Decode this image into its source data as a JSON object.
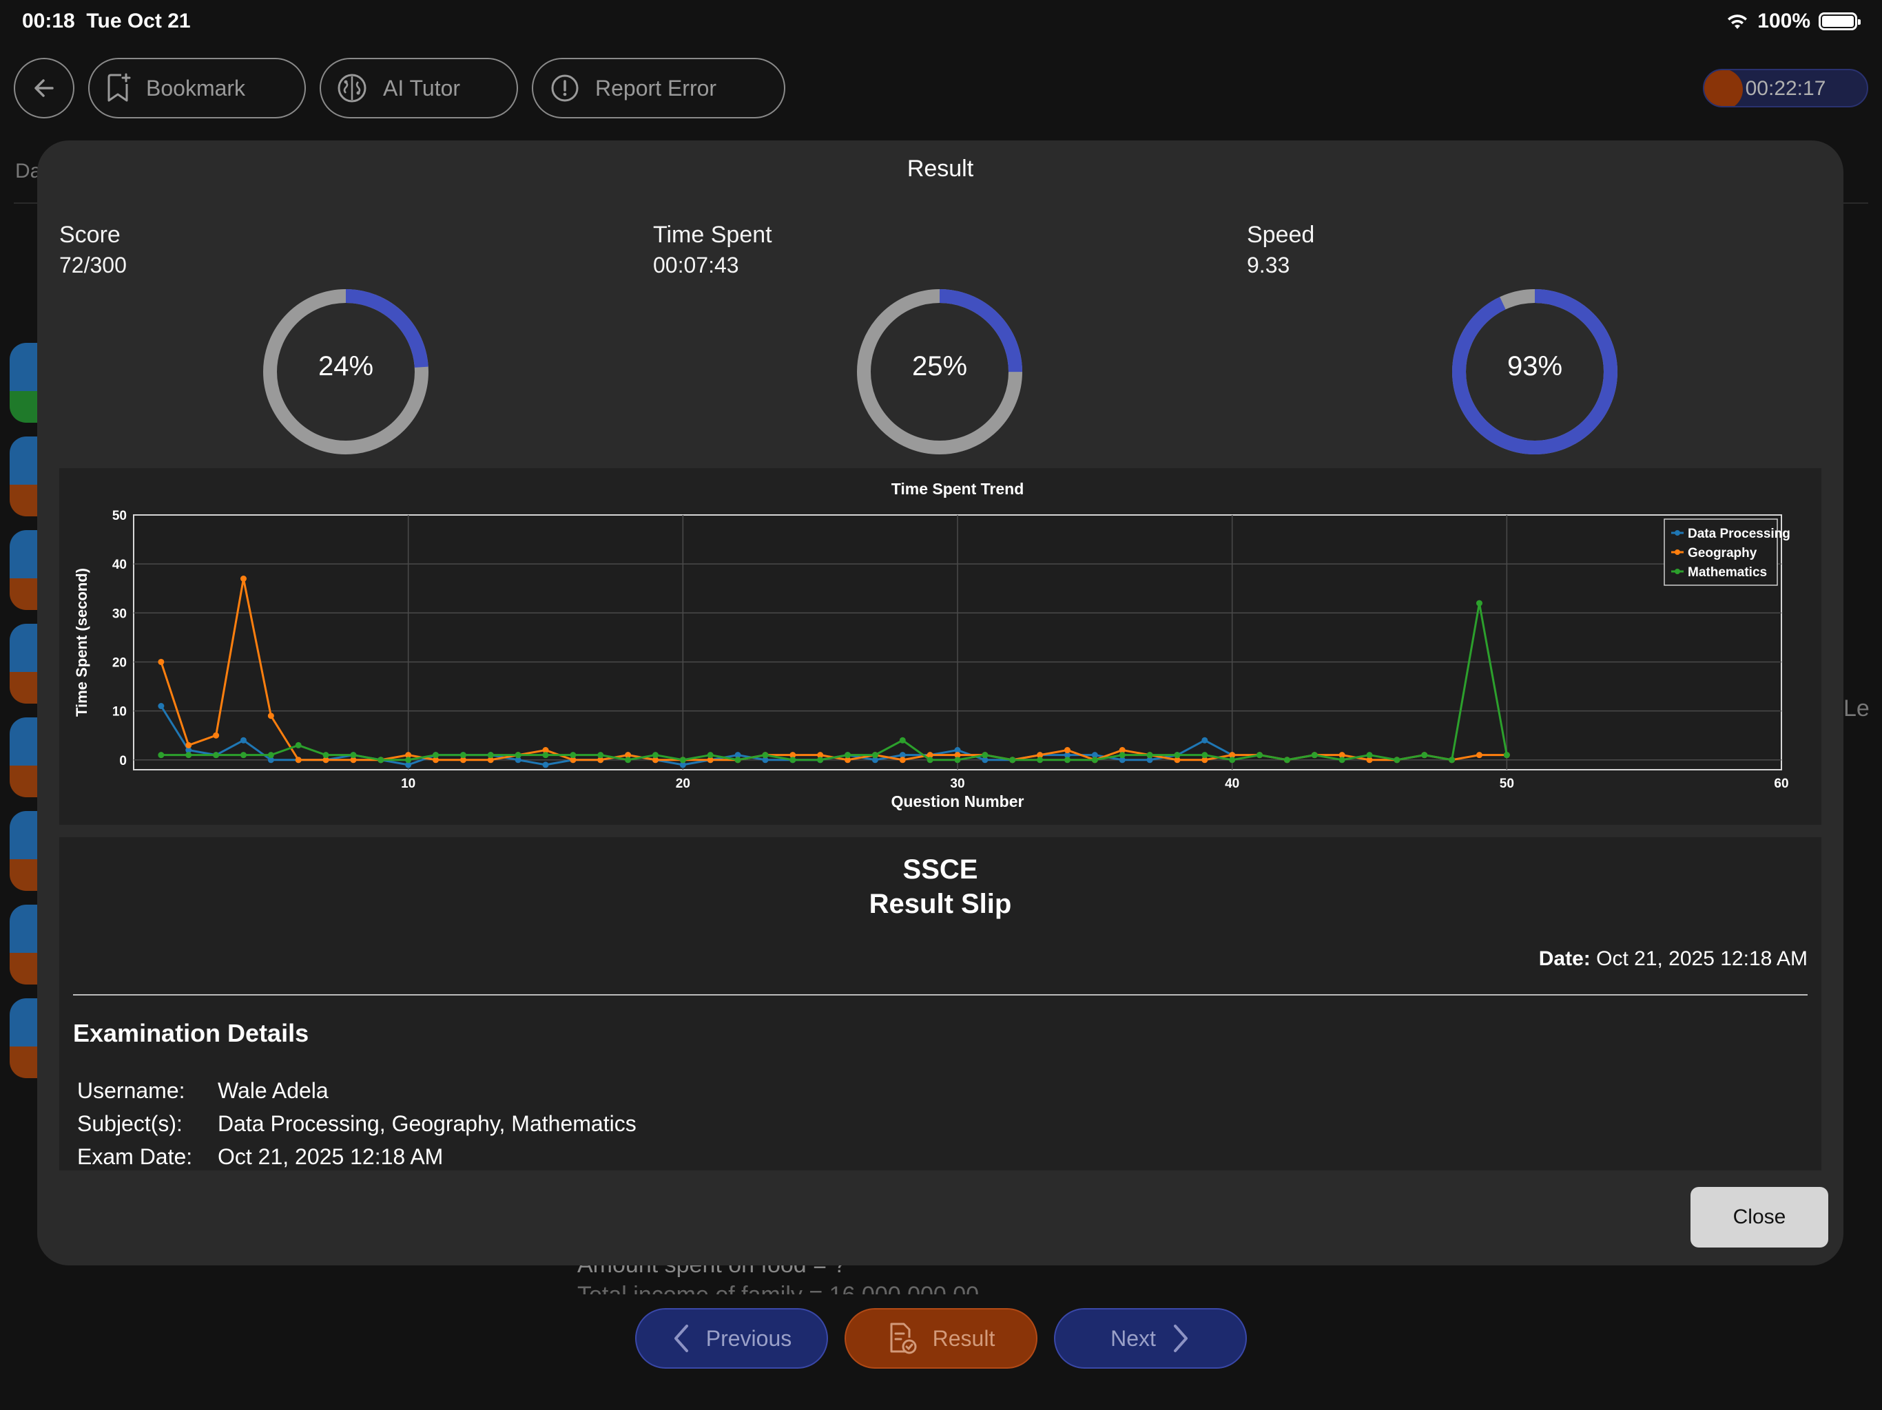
{
  "status_bar": {
    "time": "00:18",
    "date": "Tue Oct 21",
    "battery": "100%"
  },
  "toolbar": {
    "bookmark_label": "Bookmark",
    "ai_tutor_label": "AI Tutor",
    "report_label": "Report Error",
    "timer": "00:22:17",
    "timer_progress": 0.15
  },
  "background": {
    "tab_fragment": "Da",
    "right_fragment": "Le",
    "question_line": "Amount spent on food = ?",
    "question_line2": "Total income of family = 16,000,000.00"
  },
  "modal": {
    "title": "Result",
    "score": {
      "label": "Score",
      "value": "72/300",
      "percent": 24,
      "percent_label": "24%"
    },
    "time_spent": {
      "label": "Time Spent",
      "value": "00:07:43",
      "percent": 25,
      "percent_label": "25%"
    },
    "speed": {
      "label": "Speed",
      "value": "9.33",
      "percent": 93,
      "percent_label": "93%"
    },
    "close_label": "Close"
  },
  "colors": {
    "donut_fill": "#4150c0",
    "donut_track": "#9a9a9a",
    "series_blue": "#1f77b4",
    "series_orange": "#ff7f0e",
    "series_green": "#2ca02c"
  },
  "chart_data": {
    "type": "line",
    "title": "Time Spent Trend",
    "xlabel": "Question Number",
    "ylabel": "Time Spent (second)",
    "xlim": [
      0,
      60
    ],
    "ylim": [
      -2,
      50
    ],
    "xticks": [
      10,
      20,
      30,
      40,
      50,
      60
    ],
    "yticks": [
      0,
      10,
      20,
      30,
      40,
      50
    ],
    "grid": true,
    "legend": "top-right",
    "series": [
      {
        "name": "Data Processing",
        "color": "#1f77b4",
        "x": [
          1,
          2,
          3,
          4,
          5,
          6,
          7,
          8,
          9,
          10,
          11,
          12,
          13,
          14,
          15,
          16,
          17,
          18,
          19,
          20,
          21,
          22,
          23,
          24,
          25,
          26,
          27,
          28,
          29,
          30,
          31,
          32,
          33,
          34,
          35,
          36,
          37,
          38,
          39,
          40
        ],
        "y": [
          11,
          2,
          1,
          4,
          0,
          0,
          0,
          1,
          0,
          -1,
          1,
          1,
          1,
          0,
          -1,
          0,
          0,
          1,
          0,
          -1,
          0,
          1,
          0,
          0,
          0,
          1,
          0,
          1,
          1,
          2,
          0,
          0,
          1,
          1,
          1,
          0,
          0,
          1,
          4,
          1
        ]
      },
      {
        "name": "Geography",
        "color": "#ff7f0e",
        "x": [
          1,
          2,
          3,
          4,
          5,
          6,
          7,
          8,
          9,
          10,
          11,
          12,
          13,
          14,
          15,
          16,
          17,
          18,
          19,
          20,
          21,
          22,
          23,
          24,
          25,
          26,
          27,
          28,
          29,
          30,
          31,
          32,
          33,
          34,
          35,
          36,
          37,
          38,
          39,
          40,
          41,
          42,
          43,
          44,
          45,
          46,
          47,
          48,
          49,
          50
        ],
        "y": [
          20,
          3,
          5,
          37,
          9,
          0,
          0,
          0,
          0,
          1,
          0,
          0,
          0,
          1,
          2,
          0,
          0,
          1,
          0,
          0,
          0,
          0,
          1,
          1,
          1,
          0,
          1,
          0,
          1,
          1,
          1,
          0,
          1,
          2,
          0,
          2,
          1,
          0,
          0,
          1,
          1,
          0,
          1,
          1,
          0,
          0,
          1,
          0,
          1,
          1
        ]
      },
      {
        "name": "Mathematics",
        "color": "#2ca02c",
        "x": [
          1,
          2,
          3,
          4,
          5,
          6,
          7,
          8,
          9,
          10,
          11,
          12,
          13,
          14,
          15,
          16,
          17,
          18,
          19,
          20,
          21,
          22,
          23,
          24,
          25,
          26,
          27,
          28,
          29,
          30,
          31,
          32,
          33,
          34,
          35,
          36,
          37,
          38,
          39,
          40,
          41,
          42,
          43,
          44,
          45,
          46,
          47,
          48,
          49,
          50
        ],
        "y": [
          1,
          1,
          1,
          1,
          1,
          3,
          1,
          1,
          0,
          0,
          1,
          1,
          1,
          1,
          1,
          1,
          1,
          0,
          1,
          0,
          1,
          0,
          1,
          0,
          0,
          1,
          1,
          4,
          0,
          0,
          1,
          0,
          0,
          0,
          0,
          1,
          1,
          1,
          1,
          0,
          1,
          0,
          1,
          0,
          1,
          0,
          1,
          0,
          32,
          1
        ]
      }
    ]
  },
  "slip": {
    "title_line1": "SSCE",
    "title_line2": "Result Slip",
    "date_label": "Date:",
    "date_value": "Oct 21, 2025 12:18 AM",
    "section_title": "Examination Details",
    "details": [
      {
        "key": "Username:",
        "value": "Wale Adela"
      },
      {
        "key": "Subject(s):",
        "value": "Data Processing, Geography, Mathematics"
      },
      {
        "key": "Exam Date:",
        "value": "Oct 21, 2025 12:18 AM"
      }
    ]
  },
  "bottom_nav": {
    "previous_label": "Previous",
    "result_label": "Result",
    "next_label": "Next"
  }
}
